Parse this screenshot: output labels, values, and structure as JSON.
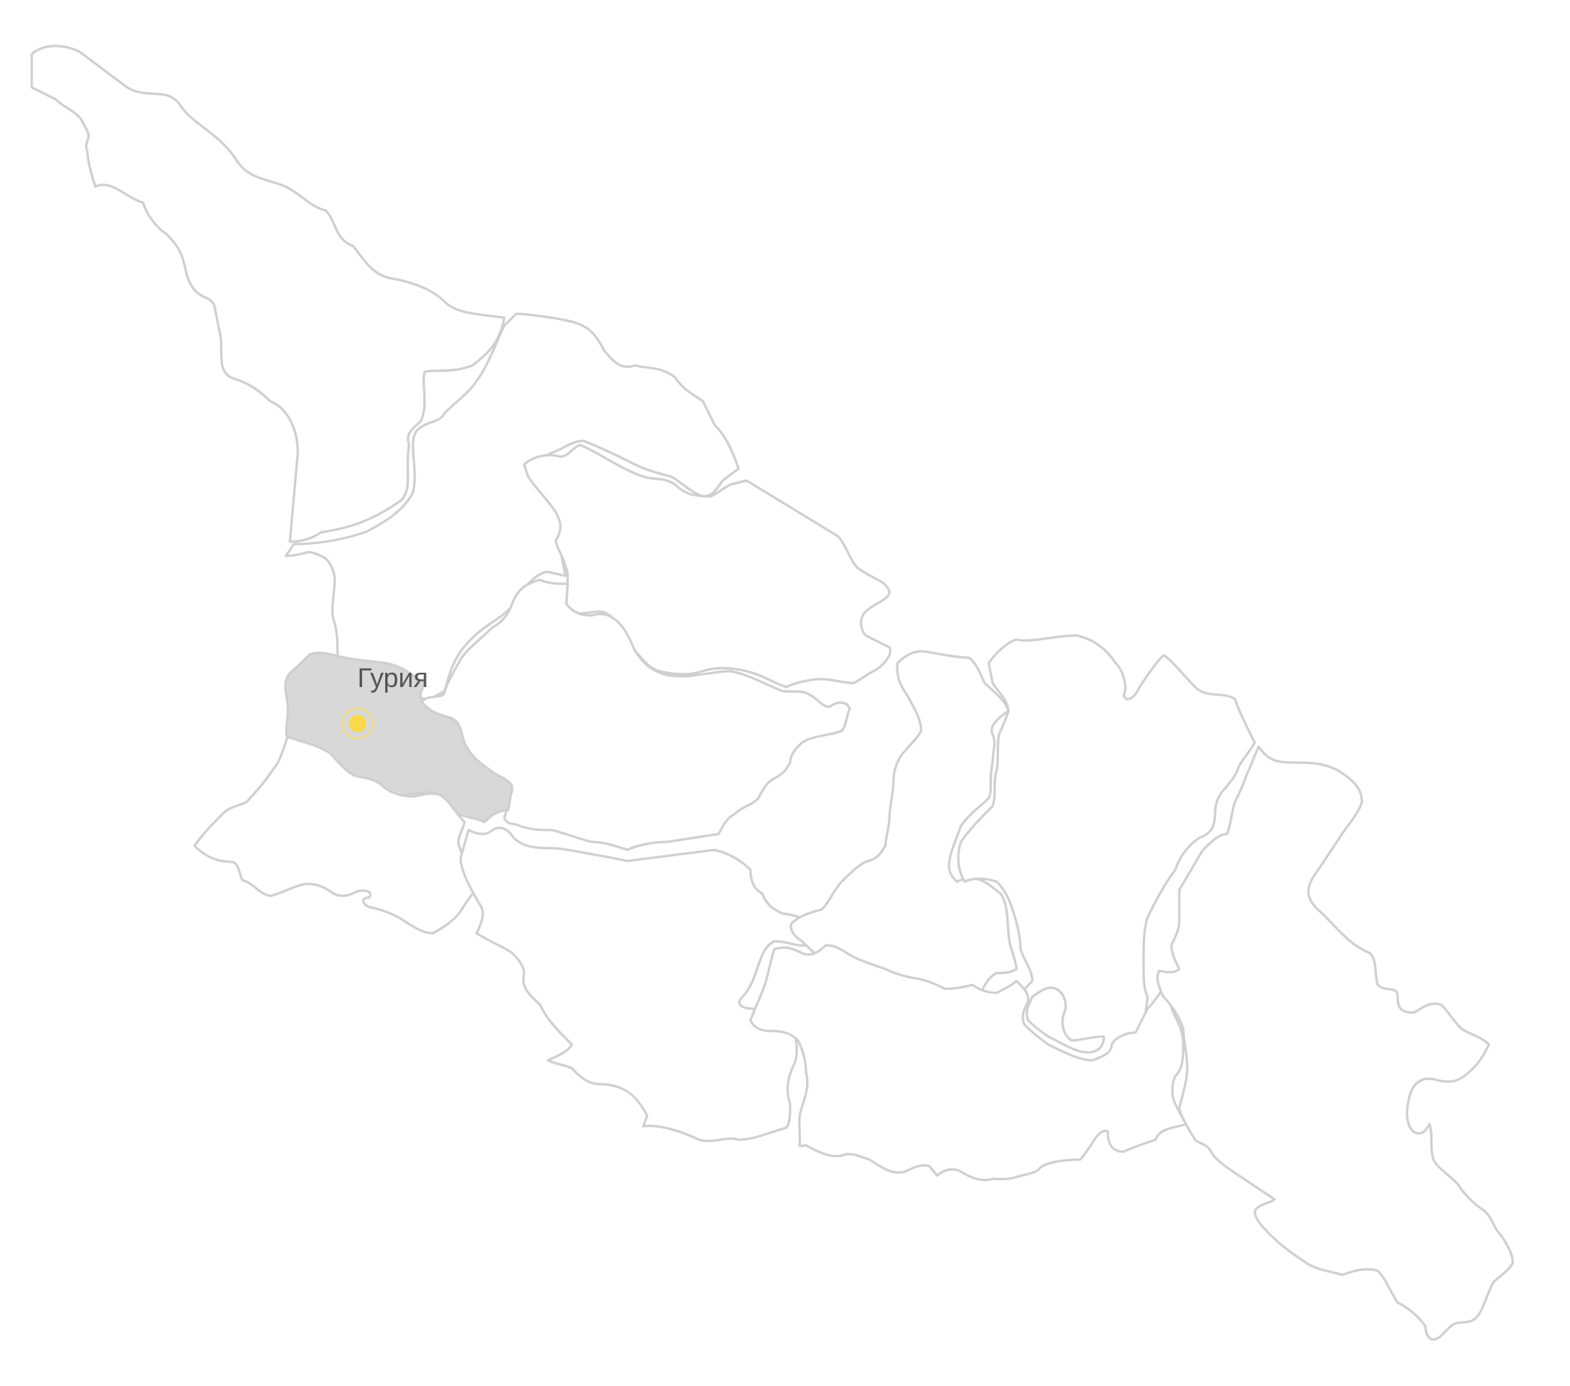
{
  "map": {
    "selected_region": {
      "name": "Гурия",
      "fill_color": "#d8d8d8"
    },
    "marker": {
      "icon": "location-dot-icon",
      "color": "#fbd74a",
      "ring_color": "#f6dc7a"
    },
    "colors": {
      "background": "#ffffff",
      "region_fill": "#ffffff",
      "region_border": "#cfcfcf",
      "label_text": "#555555"
    },
    "regions": [
      {
        "id": "abkhazia"
      },
      {
        "id": "samegrelo-zemo-svaneti"
      },
      {
        "id": "racha-lechkhumi-kvemo-svaneti"
      },
      {
        "id": "imereti"
      },
      {
        "id": "guria"
      },
      {
        "id": "adjara"
      },
      {
        "id": "samtskhe-javakheti"
      },
      {
        "id": "shida-kartli"
      },
      {
        "id": "mtskheta-mtianeti"
      },
      {
        "id": "tbilisi"
      },
      {
        "id": "kvemo-kartli"
      },
      {
        "id": "kakheti"
      }
    ]
  }
}
